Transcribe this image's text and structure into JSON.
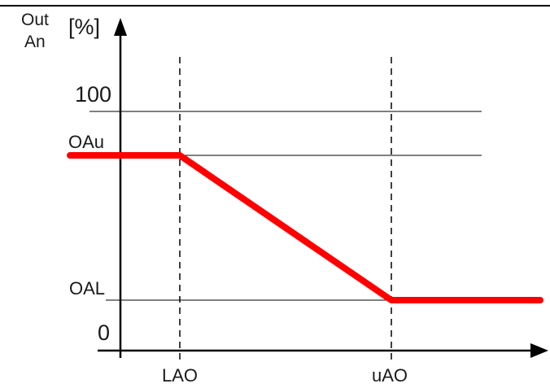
{
  "diagram": {
    "y_axis_label_line1": "Out",
    "y_axis_label_line2": "An",
    "y_axis_unit": "[%]",
    "y_labels": {
      "max": "100",
      "upper_output": "OAu",
      "lower_output": "OAL",
      "zero": "0"
    },
    "x_labels": {
      "lower_point": "LAO",
      "upper_point": "uAO"
    },
    "colors": {
      "curve": "#ff0000",
      "axis": "#000000",
      "guide": "#000000"
    }
  }
}
